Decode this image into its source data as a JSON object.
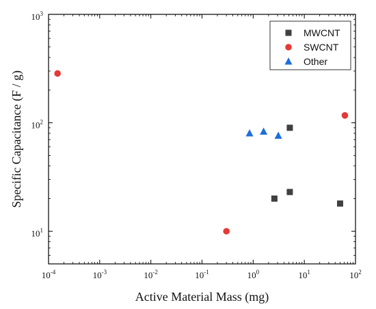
{
  "chart_data": {
    "type": "scatter",
    "title": "",
    "xlabel": "Active Material Mass (mg)",
    "ylabel": "Specific Capacitance (F / g)",
    "xscale": "log",
    "yscale": "log",
    "xlim": [
      0.0001,
      100
    ],
    "ylim": [
      5,
      1000
    ],
    "x_ticks": [
      0.0001,
      0.001,
      0.01,
      0.1,
      1,
      10,
      100
    ],
    "x_tick_labels": [
      [
        "10",
        "-4"
      ],
      [
        "10",
        "-3"
      ],
      [
        "10",
        "-2"
      ],
      [
        "10",
        "-1"
      ],
      [
        "10",
        "0"
      ],
      [
        "10",
        "1"
      ],
      [
        "10",
        "2"
      ]
    ],
    "y_ticks": [
      10,
      100,
      1000
    ],
    "y_tick_labels": [
      [
        "10",
        "1"
      ],
      [
        "10",
        "2"
      ],
      [
        "10",
        "3"
      ]
    ],
    "grid": false,
    "legend_position": "top-right",
    "series": [
      {
        "name": "MWCNT",
        "marker": "square",
        "color": "#404040",
        "points": [
          [
            2.6,
            20
          ],
          [
            5.2,
            23
          ],
          [
            5.2,
            90
          ],
          [
            50,
            18
          ]
        ]
      },
      {
        "name": "SWCNT",
        "marker": "circle",
        "color": "#e53935",
        "points": [
          [
            0.00015,
            285
          ],
          [
            0.3,
            10
          ],
          [
            62,
            117
          ]
        ]
      },
      {
        "name": "Other",
        "marker": "triangle",
        "color": "#1e6fd9",
        "points": [
          [
            0.85,
            80
          ],
          [
            1.6,
            83
          ],
          [
            3.1,
            76
          ]
        ]
      }
    ]
  }
}
